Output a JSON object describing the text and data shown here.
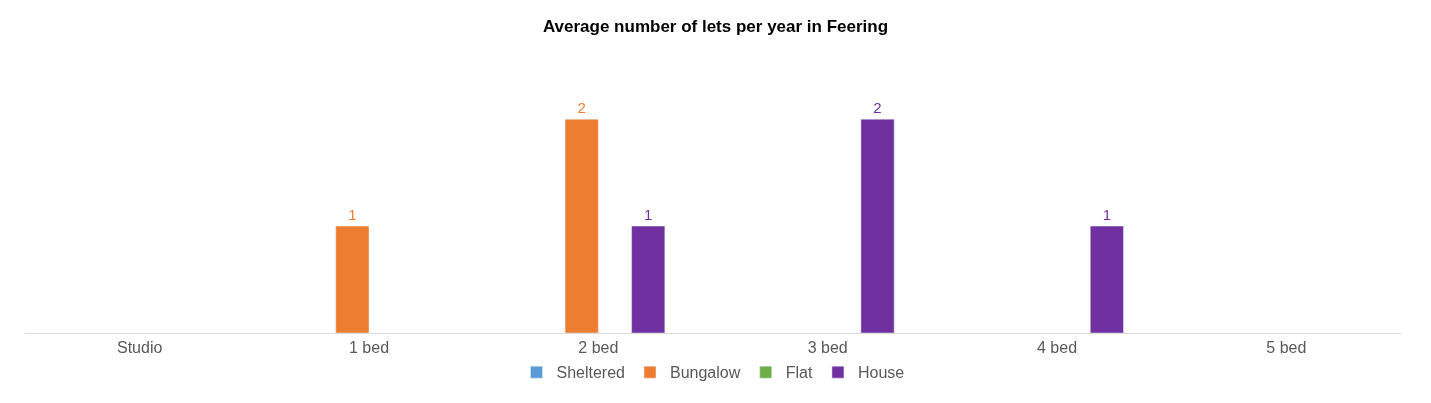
{
  "chart_data": {
    "type": "bar",
    "title": "Average number of lets per year in Feering",
    "categories": [
      "Studio",
      "1 bed",
      "2 bed",
      "3 bed",
      "4 bed",
      "5 bed"
    ],
    "series": [
      {
        "name": "Sheltered",
        "color": "#5b9bd5",
        "values": [
          null,
          null,
          null,
          null,
          null,
          null
        ]
      },
      {
        "name": "Bungalow",
        "color": "#ed7d31",
        "values": [
          null,
          1,
          2,
          null,
          null,
          null
        ]
      },
      {
        "name": "Flat",
        "color": "#70ad47",
        "values": [
          null,
          null,
          null,
          null,
          null,
          null
        ]
      },
      {
        "name": "House",
        "color": "#7030a0",
        "values": [
          null,
          null,
          1,
          2,
          1,
          null
        ]
      }
    ],
    "data_labels": true,
    "legend": "bottom"
  }
}
